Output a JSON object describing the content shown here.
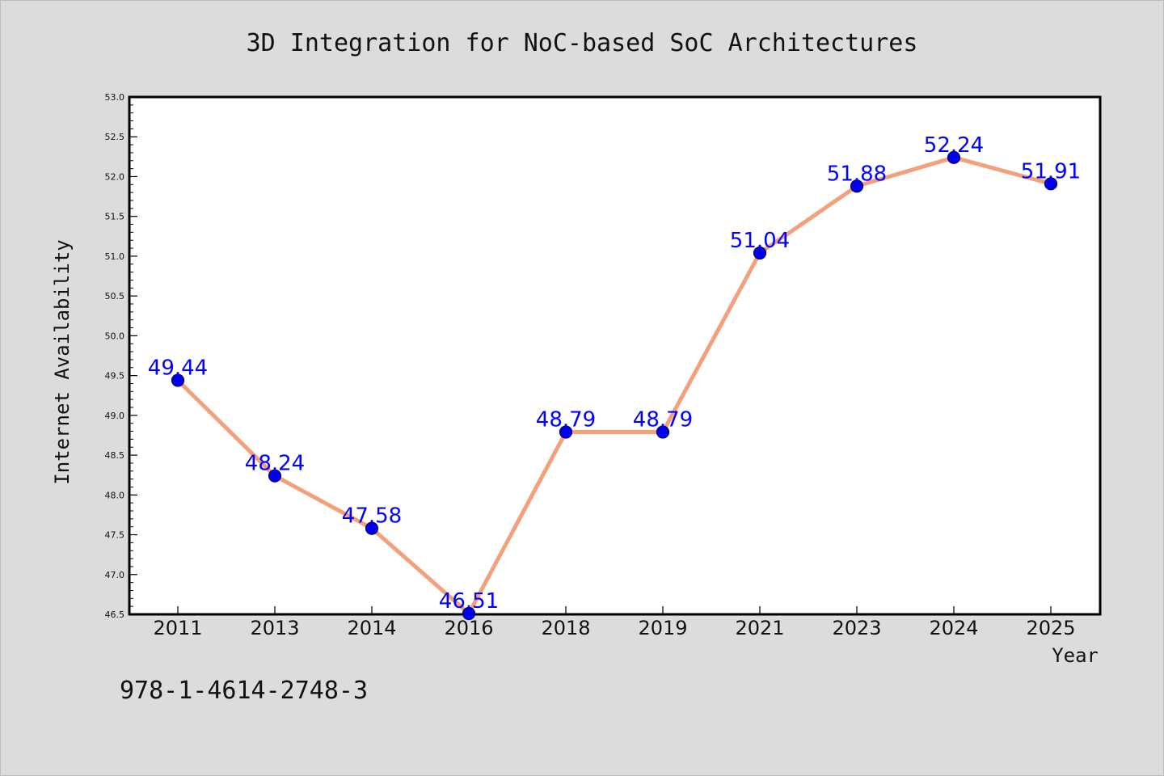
{
  "chart_data": {
    "type": "line",
    "title": "3D Integration for NoC-based SoC Architectures",
    "xlabel": "Year",
    "ylabel": "Internet Availability",
    "categories": [
      "2011",
      "2013",
      "2014",
      "2016",
      "2018",
      "2019",
      "2021",
      "2023",
      "2024",
      "2025"
    ],
    "values": [
      49.44,
      48.24,
      47.58,
      46.51,
      48.79,
      48.79,
      51.04,
      51.88,
      52.24,
      51.91
    ],
    "data_labels": [
      "49.44",
      "48.24",
      "47.58",
      "46.51",
      "48.79",
      "48.79",
      "51.04",
      "51.88",
      "52.24",
      "51.91"
    ],
    "ylim": [
      46.5,
      53.0
    ],
    "yticks": [
      "46.5",
      "47.0",
      "47.5",
      "48.0",
      "48.5",
      "49.0",
      "49.5",
      "50.0",
      "50.5",
      "51.0",
      "51.5",
      "52.0",
      "52.5",
      "53.0"
    ],
    "grid": false,
    "legend": "none",
    "colors": {
      "line": "#f4a07c",
      "marker": "#0000ee",
      "marker_edge": "#000060",
      "label": "#0000ff",
      "background": "#dcdcdc",
      "plot_background": "#ffffff"
    }
  },
  "footer": {
    "isbn": "978-1-4614-2748-3"
  }
}
